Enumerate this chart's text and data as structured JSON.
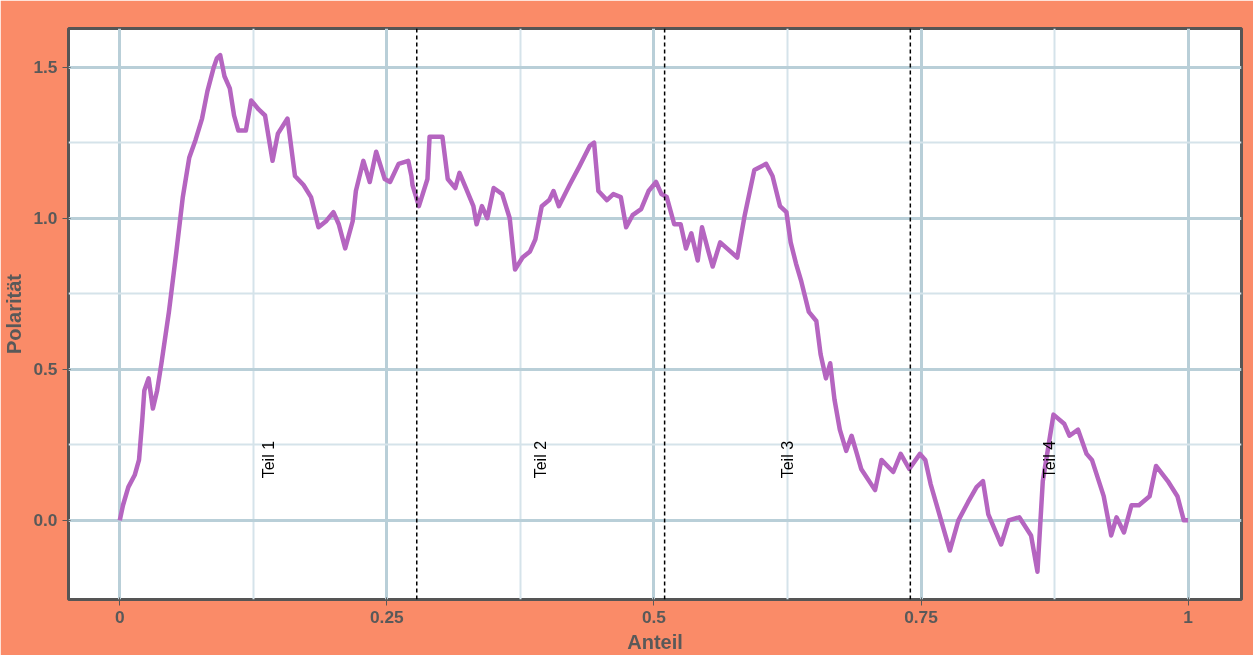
{
  "chart_data": {
    "type": "line",
    "xlabel": "Anteil",
    "ylabel": "Polarität",
    "series": [
      {
        "color": "#b565c0",
        "x": [
          0,
          0.003,
          0.008,
          0.014,
          0.018,
          0.021,
          0.023,
          0.027,
          0.031,
          0.035,
          0.039,
          0.046,
          0.053,
          0.059,
          0.065,
          0.071,
          0.077,
          0.082,
          0.088,
          0.091,
          0.094,
          0.098,
          0.103,
          0.107,
          0.111,
          0.118,
          0.123,
          0.13,
          0.136,
          0.143,
          0.148,
          0.157,
          0.164,
          0.172,
          0.179,
          0.186,
          0.193,
          0.2,
          0.205,
          0.211,
          0.218,
          0.221,
          0.228,
          0.234,
          0.24,
          0.248,
          0.253,
          0.261,
          0.27,
          0.273,
          0.274,
          0.28,
          0.288,
          0.29,
          0.302,
          0.307,
          0.314,
          0.318,
          0.324,
          0.331,
          0.334,
          0.339,
          0.344,
          0.35,
          0.358,
          0.365,
          0.37,
          0.377,
          0.384,
          0.389,
          0.395,
          0.402,
          0.406,
          0.411,
          0.421,
          0.43,
          0.44,
          0.444,
          0.448,
          0.456,
          0.462,
          0.469,
          0.474,
          0.48,
          0.488,
          0.495,
          0.502,
          0.507,
          0.512,
          0.519,
          0.525,
          0.53,
          0.535,
          0.541,
          0.545,
          0.551,
          0.555,
          0.562,
          0.578,
          0.585,
          0.594,
          0.605,
          0.611,
          0.618,
          0.624,
          0.628,
          0.633,
          0.638,
          0.645,
          0.652,
          0.656,
          0.661,
          0.665,
          0.669,
          0.674,
          0.68,
          0.685,
          0.69,
          0.694,
          0.707,
          0.713,
          0.724,
          0.731,
          0.739,
          0.749,
          0.754,
          0.759,
          0.768,
          0.777,
          0.785,
          0.794,
          0.802,
          0.808,
          0.813,
          0.825,
          0.832,
          0.842,
          0.853,
          0.859,
          0.864,
          0.874,
          0.884,
          0.889,
          0.897,
          0.905,
          0.91,
          0.921,
          0.928,
          0.933,
          0.94,
          0.947,
          0.954,
          0.964,
          0.97,
          0.981,
          0.99,
          0.996,
          1.0
        ],
        "values": [
          0,
          0.05,
          0.11,
          0.15,
          0.2,
          0.33,
          0.43,
          0.47,
          0.37,
          0.43,
          0.52,
          0.69,
          0.89,
          1.07,
          1.2,
          1.26,
          1.33,
          1.42,
          1.5,
          1.53,
          1.54,
          1.47,
          1.43,
          1.34,
          1.29,
          1.29,
          1.39,
          1.36,
          1.34,
          1.19,
          1.28,
          1.33,
          1.14,
          1.11,
          1.07,
          0.97,
          0.99,
          1.02,
          0.98,
          0.9,
          0.99,
          1.09,
          1.19,
          1.12,
          1.22,
          1.13,
          1.12,
          1.18,
          1.19,
          1.14,
          1.11,
          1.04,
          1.13,
          1.27,
          1.27,
          1.13,
          1.1,
          1.15,
          1.1,
          1.04,
          0.98,
          1.04,
          1.0,
          1.1,
          1.08,
          1.0,
          0.83,
          0.87,
          0.89,
          0.93,
          1.04,
          1.06,
          1.09,
          1.04,
          1.11,
          1.17,
          1.24,
          1.25,
          1.09,
          1.06,
          1.08,
          1.07,
          0.97,
          1.01,
          1.03,
          1.09,
          1.12,
          1.08,
          1.07,
          0.98,
          0.98,
          0.9,
          0.95,
          0.86,
          0.97,
          0.89,
          0.84,
          0.92,
          0.87,
          1.01,
          1.16,
          1.18,
          1.14,
          1.04,
          1.02,
          0.92,
          0.85,
          0.79,
          0.69,
          0.66,
          0.55,
          0.47,
          0.52,
          0.4,
          0.3,
          0.23,
          0.28,
          0.22,
          0.17,
          0.1,
          0.2,
          0.16,
          0.22,
          0.17,
          0.22,
          0.2,
          0.12,
          0.01,
          -0.1,
          0.0,
          0.06,
          0.11,
          0.13,
          0.02,
          -0.08,
          0.0,
          0.01,
          -0.05,
          -0.17,
          0.13,
          0.35,
          0.32,
          0.28,
          0.3,
          0.22,
          0.2,
          0.08,
          -0.05,
          0.01,
          -0.04,
          0.05,
          0.05,
          0.08,
          0.18,
          0.13,
          0.08,
          0.0,
          0.0
        ]
      }
    ],
    "xlim": [
      -0.048,
      1.05
    ],
    "ylim": [
      -0.262,
      1.628
    ],
    "xticks": [
      0,
      0.25,
      0.5,
      0.75,
      1
    ],
    "yticks": [
      {
        "value": 0,
        "label": "0.0"
      },
      {
        "value": 0.5,
        "label": "0.5"
      },
      {
        "value": 1,
        "label": "1.0"
      },
      {
        "value": 1.5,
        "label": "1.5"
      }
    ],
    "grid": true,
    "marker": "none",
    "line_style": "solid",
    "ref_lines": [
      {
        "axis": "x",
        "value": 0.278,
        "line_style": "dashed",
        "color": "#000000"
      },
      {
        "axis": "x",
        "value": 0.51,
        "line_style": "dashed",
        "color": "#000000"
      },
      {
        "axis": "x",
        "value": 0.74,
        "line_style": "dashed",
        "color": "#000000"
      }
    ],
    "annotations": [
      "Teil 1",
      "Teil 2",
      "Teil 3",
      "Teil 4"
    ]
  }
}
